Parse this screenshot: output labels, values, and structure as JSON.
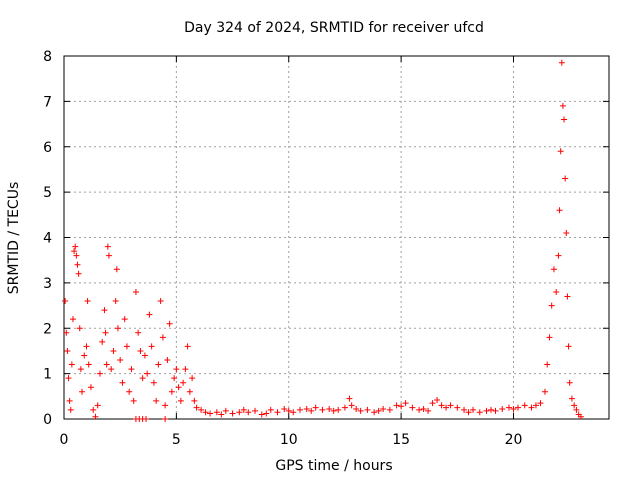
{
  "chart_data": {
    "type": "scatter",
    "title": "Day 324 of 2024, SRMTID for receiver ufcd",
    "xlabel": "GPS time / hours",
    "ylabel": "SRMTID / TECUs",
    "xlim": [
      0,
      24.25
    ],
    "ylim": [
      0,
      8
    ],
    "xticks": [
      0,
      5,
      10,
      15,
      20
    ],
    "yticks": [
      0,
      1,
      2,
      3,
      4,
      5,
      6,
      7,
      8
    ],
    "grid": true,
    "marker": "+",
    "color": "#ff0000",
    "series": [
      {
        "name": "SRMTID",
        "points": [
          [
            0.05,
            2.6
          ],
          [
            0.1,
            1.9
          ],
          [
            0.15,
            1.5
          ],
          [
            0.2,
            0.9
          ],
          [
            0.25,
            0.4
          ],
          [
            0.3,
            0.2
          ],
          [
            0.35,
            1.2
          ],
          [
            0.4,
            2.2
          ],
          [
            0.45,
            3.7
          ],
          [
            0.5,
            3.8
          ],
          [
            0.55,
            3.6
          ],
          [
            0.6,
            3.4
          ],
          [
            0.65,
            3.2
          ],
          [
            0.7,
            2.0
          ],
          [
            0.75,
            1.1
          ],
          [
            0.8,
            0.6
          ],
          [
            0.9,
            1.4
          ],
          [
            1.0,
            1.6
          ],
          [
            1.05,
            2.6
          ],
          [
            1.1,
            1.2
          ],
          [
            1.2,
            0.7
          ],
          [
            1.3,
            0.2
          ],
          [
            1.4,
            0.05
          ],
          [
            1.5,
            0.3
          ],
          [
            1.6,
            1.0
          ],
          [
            1.7,
            1.7
          ],
          [
            1.8,
            2.4
          ],
          [
            1.85,
            1.9
          ],
          [
            1.9,
            1.2
          ],
          [
            1.95,
            3.8
          ],
          [
            2.0,
            3.6
          ],
          [
            2.1,
            1.1
          ],
          [
            2.2,
            1.5
          ],
          [
            2.3,
            2.6
          ],
          [
            2.35,
            3.3
          ],
          [
            2.4,
            2.0
          ],
          [
            2.5,
            1.3
          ],
          [
            2.6,
            0.8
          ],
          [
            2.7,
            2.2
          ],
          [
            2.8,
            1.6
          ],
          [
            2.9,
            0.6
          ],
          [
            3.0,
            1.1
          ],
          [
            3.1,
            0.4
          ],
          [
            3.2,
            2.8
          ],
          [
            3.3,
            1.9
          ],
          [
            3.4,
            1.5
          ],
          [
            3.5,
            0.9
          ],
          [
            3.6,
            1.4
          ],
          [
            3.7,
            1.0
          ],
          [
            3.8,
            2.3
          ],
          [
            3.9,
            1.6
          ],
          [
            4.0,
            0.8
          ],
          [
            4.1,
            0.4
          ],
          [
            4.2,
            1.2
          ],
          [
            4.3,
            2.6
          ],
          [
            4.4,
            1.8
          ],
          [
            4.5,
            0.3
          ],
          [
            4.6,
            1.3
          ],
          [
            4.7,
            2.1
          ],
          [
            4.8,
            0.6
          ],
          [
            4.9,
            0.9
          ],
          [
            5.0,
            1.1
          ],
          [
            5.1,
            0.7
          ],
          [
            5.2,
            0.4
          ],
          [
            5.3,
            0.8
          ],
          [
            5.4,
            1.1
          ],
          [
            5.5,
            1.6
          ],
          [
            5.6,
            0.6
          ],
          [
            5.7,
            0.9
          ],
          [
            5.8,
            0.4
          ],
          [
            5.9,
            0.25
          ],
          [
            6.1,
            0.2
          ],
          [
            6.3,
            0.15
          ],
          [
            6.5,
            0.12
          ],
          [
            6.8,
            0.15
          ],
          [
            7.0,
            0.1
          ],
          [
            7.2,
            0.18
          ],
          [
            7.5,
            0.12
          ],
          [
            7.8,
            0.15
          ],
          [
            8.0,
            0.2
          ],
          [
            8.2,
            0.15
          ],
          [
            8.5,
            0.18
          ],
          [
            8.8,
            0.1
          ],
          [
            9.0,
            0.12
          ],
          [
            9.2,
            0.2
          ],
          [
            9.5,
            0.15
          ],
          [
            9.8,
            0.22
          ],
          [
            10.0,
            0.18
          ],
          [
            10.2,
            0.15
          ],
          [
            10.5,
            0.2
          ],
          [
            10.8,
            0.22
          ],
          [
            11.0,
            0.18
          ],
          [
            11.2,
            0.25
          ],
          [
            11.5,
            0.2
          ],
          [
            11.8,
            0.22
          ],
          [
            12.0,
            0.18
          ],
          [
            12.2,
            0.2
          ],
          [
            12.5,
            0.25
          ],
          [
            12.7,
            0.45
          ],
          [
            12.8,
            0.3
          ],
          [
            13.0,
            0.22
          ],
          [
            13.2,
            0.18
          ],
          [
            13.5,
            0.2
          ],
          [
            13.8,
            0.15
          ],
          [
            14.0,
            0.18
          ],
          [
            14.2,
            0.22
          ],
          [
            14.5,
            0.2
          ],
          [
            14.8,
            0.3
          ],
          [
            15.0,
            0.28
          ],
          [
            15.2,
            0.35
          ],
          [
            15.5,
            0.25
          ],
          [
            15.8,
            0.2
          ],
          [
            16.0,
            0.22
          ],
          [
            16.2,
            0.18
          ],
          [
            16.4,
            0.35
          ],
          [
            16.6,
            0.42
          ],
          [
            16.8,
            0.3
          ],
          [
            17.0,
            0.25
          ],
          [
            17.2,
            0.3
          ],
          [
            17.5,
            0.25
          ],
          [
            17.8,
            0.2
          ],
          [
            18.0,
            0.15
          ],
          [
            18.2,
            0.2
          ],
          [
            18.5,
            0.15
          ],
          [
            18.8,
            0.18
          ],
          [
            19.0,
            0.2
          ],
          [
            19.2,
            0.18
          ],
          [
            19.5,
            0.22
          ],
          [
            19.8,
            0.25
          ],
          [
            20.0,
            0.22
          ],
          [
            20.2,
            0.25
          ],
          [
            20.5,
            0.3
          ],
          [
            20.8,
            0.25
          ],
          [
            21.0,
            0.3
          ],
          [
            21.2,
            0.35
          ],
          [
            21.4,
            0.6
          ],
          [
            21.5,
            1.2
          ],
          [
            21.6,
            1.8
          ],
          [
            21.7,
            2.5
          ],
          [
            21.8,
            3.3
          ],
          [
            21.9,
            2.8
          ],
          [
            22.0,
            3.6
          ],
          [
            22.05,
            4.6
          ],
          [
            22.1,
            5.9
          ],
          [
            22.15,
            7.85
          ],
          [
            22.2,
            6.9
          ],
          [
            22.25,
            6.6
          ],
          [
            22.3,
            5.3
          ],
          [
            22.35,
            4.1
          ],
          [
            22.4,
            2.7
          ],
          [
            22.45,
            1.6
          ],
          [
            22.5,
            0.8
          ],
          [
            22.6,
            0.45
          ],
          [
            22.7,
            0.3
          ],
          [
            22.8,
            0.2
          ],
          [
            22.9,
            0.1
          ],
          [
            23.0,
            0.05
          ]
        ],
        "outliers_at_zero": [
          3.2,
          3.35,
          3.5,
          3.65,
          4.5
        ]
      }
    ]
  }
}
